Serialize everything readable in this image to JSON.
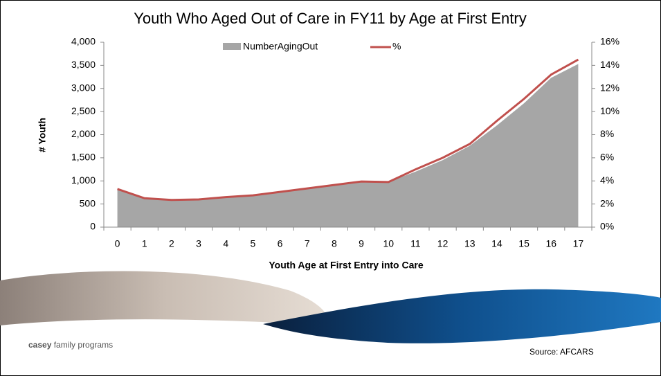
{
  "chart_data": {
    "type": "area_line",
    "title": "Youth Who Aged Out of Care in FY11 by Age at First Entry",
    "x_label": "Youth Age at First Entry into Care",
    "y_label": "# Youth",
    "categories": [
      "0",
      "1",
      "2",
      "3",
      "4",
      "5",
      "6",
      "7",
      "8",
      "9",
      "10",
      "11",
      "12",
      "13",
      "14",
      "15",
      "16",
      "17"
    ],
    "series": [
      {
        "name": "NumberAgingOut",
        "color": "#a6a6a6",
        "values": [
          810,
          630,
          600,
          610,
          660,
          690,
          760,
          830,
          900,
          980,
          980,
          1200,
          1450,
          1760,
          2200,
          2680,
          3230,
          3530
        ]
      },
      {
        "name": "%",
        "color": "#c0504d",
        "axis": "y2",
        "values": [
          3.3,
          2.5,
          2.35,
          2.4,
          2.6,
          2.75,
          3.05,
          3.35,
          3.65,
          3.95,
          3.9,
          5.0,
          6.0,
          7.2,
          9.2,
          11.1,
          13.2,
          14.5
        ]
      }
    ],
    "ylim": [
      0,
      4000
    ],
    "yticks": [
      0,
      500,
      {
        "value": 1000,
        "label": "1,000"
      },
      {
        "value": 1500,
        "label": "1,500"
      },
      {
        "value": 2000,
        "label": "2,000"
      },
      {
        "value": 2500,
        "label": "2,500"
      },
      {
        "value": 3000,
        "label": "3,000"
      },
      {
        "value": 3500,
        "label": "3,500"
      },
      {
        "value": 4000,
        "label": "4,000"
      }
    ],
    "y2lim": [
      0,
      16
    ],
    "y2ticks": [
      {
        "value": 0,
        "label": "0%"
      },
      {
        "value": 2,
        "label": "2%"
      },
      {
        "value": 4,
        "label": "4%"
      },
      {
        "value": 6,
        "label": "6%"
      },
      {
        "value": 8,
        "label": "8%"
      },
      {
        "value": 10,
        "label": "10%"
      },
      {
        "value": 12,
        "label": "12%"
      },
      {
        "value": 14,
        "label": "14%"
      },
      {
        "value": 16,
        "label": "16%"
      }
    ],
    "legend": "top"
  },
  "footer": {
    "logo_bold": "casey",
    "logo_rest": "family programs",
    "source": "Source: AFCARS"
  }
}
